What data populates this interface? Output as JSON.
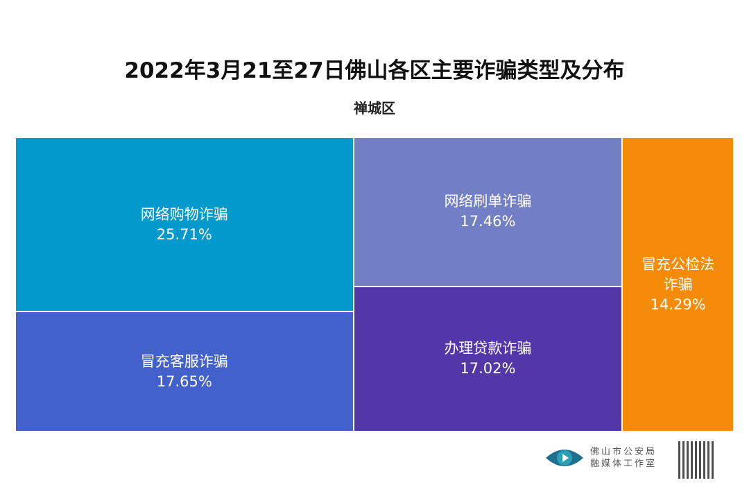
{
  "chart_data": {
    "type": "treemap",
    "title": "2022年3月21至27日佛山各区主要诈骗类型及分布",
    "subtitle": "禅城区",
    "columns": [
      [
        {
          "name": "网络购物诈骗",
          "value": 25.71,
          "label": "25.71%",
          "color": "#0499CC"
        },
        {
          "name": "冒充客服诈骗",
          "value": 17.65,
          "label": "17.65%",
          "color": "#4361CB"
        }
      ],
      [
        {
          "name": "网络刷单诈骗",
          "value": 17.46,
          "label": "17.46%",
          "color": "#727FC5"
        },
        {
          "name": "办理贷款诈骗",
          "value": 17.02,
          "label": "17.02%",
          "color": "#5337A8"
        }
      ],
      [
        {
          "name": "冒充公检法诈骗",
          "value": 14.29,
          "label": "14.29%",
          "color": "#F68B0A"
        }
      ]
    ]
  },
  "footer": {
    "logo_line1": "佛山市公安局",
    "logo_line2": "融媒体工作室"
  }
}
